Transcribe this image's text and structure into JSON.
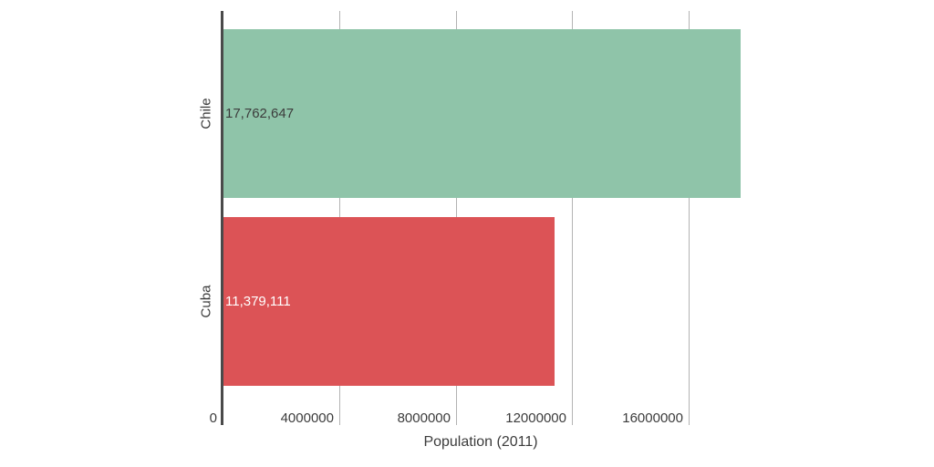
{
  "chart_data": {
    "type": "bar",
    "orientation": "horizontal",
    "title": "",
    "xlabel": "Population (2011)",
    "ylabel": "",
    "categories": [
      "Chile",
      "Cuba"
    ],
    "values": [
      17762647,
      11379111
    ],
    "value_labels": [
      "17,762,647",
      "11,379,111"
    ],
    "colors": [
      "#8fc4a9",
      "#dc5356"
    ],
    "value_label_colors": [
      "#3c3c3c",
      "#ffffff"
    ],
    "xlim": [
      0,
      17762647
    ],
    "x_ticks": [
      0,
      4000000,
      8000000,
      12000000,
      16000000
    ],
    "x_tick_labels": [
      "0",
      "4000000",
      "8000000",
      "12000000",
      "16000000"
    ],
    "grid": true,
    "legend": null
  }
}
